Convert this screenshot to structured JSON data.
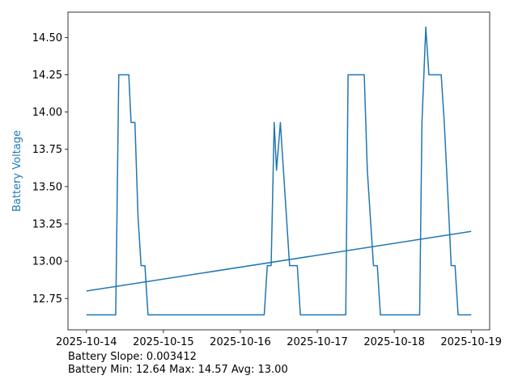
{
  "chart_data": {
    "type": "line",
    "ylabel": "Battery Voltage",
    "ylabel_color": "#1f77b4",
    "annotations": [
      "Battery Slope: 0.003412",
      "Battery Min: 12.64 Max: 14.57 Avg: 13.00"
    ],
    "xlim": [
      -0.24,
      5.24
    ],
    "xticks": [
      {
        "value": 0,
        "label": "2025-10-14"
      },
      {
        "value": 1,
        "label": "2025-10-15"
      },
      {
        "value": 2,
        "label": "2025-10-16"
      },
      {
        "value": 3,
        "label": "2025-10-17"
      },
      {
        "value": 4,
        "label": "2025-10-18"
      },
      {
        "value": 5,
        "label": "2025-10-19"
      }
    ],
    "ylim": [
      12.54,
      14.67
    ],
    "yticks": [
      12.75,
      {
        "value": 13,
        "label": "13.00"
      },
      13.25,
      {
        "value": 13.5,
        "label": "13.50"
      },
      13.75,
      {
        "value": 14,
        "label": "14.00"
      },
      14.25,
      {
        "value": 14.5,
        "label": "14.50"
      }
    ],
    "series": [
      {
        "color": "#1f77b4",
        "x": [
          0,
          0.38,
          0.42,
          0.55,
          0.58,
          0.63,
          0.67,
          0.71,
          0.76,
          0.8,
          2.31,
          2.35,
          2.4,
          2.44,
          2.47,
          2.52,
          2.64,
          2.74,
          2.78,
          3.37,
          3.4,
          3.61,
          3.65,
          3.73,
          3.78,
          3.82,
          4.33,
          4.36,
          4.41,
          4.45,
          4.61,
          4.65,
          4.71,
          4.74,
          4.79,
          4.83,
          5.0
        ],
        "values": [
          12.64,
          12.64,
          14.25,
          14.25,
          13.93,
          13.93,
          13.3,
          12.97,
          12.97,
          12.64,
          12.64,
          12.97,
          12.97,
          13.93,
          13.61,
          13.93,
          12.97,
          12.97,
          12.64,
          12.64,
          14.25,
          14.25,
          13.61,
          12.97,
          12.97,
          12.64,
          12.64,
          13.93,
          14.57,
          14.25,
          14.25,
          13.93,
          13.3,
          12.97,
          12.97,
          12.64,
          12.64
        ]
      },
      {
        "color": "#1f77b4",
        "x": [
          0,
          5.0
        ],
        "values": [
          12.8,
          13.2
        ]
      }
    ]
  }
}
